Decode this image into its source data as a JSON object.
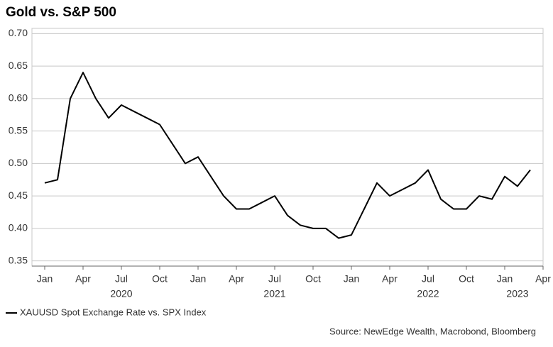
{
  "chart_data": {
    "type": "line",
    "title": "Gold vs. S&P 500",
    "source": "Source: NewEdge Wealth, Macrobond, Bloomberg",
    "x": [
      "2020-01",
      "2020-02",
      "2020-03",
      "2020-04",
      "2020-05",
      "2020-06",
      "2020-07",
      "2020-08",
      "2020-09",
      "2020-10",
      "2020-11",
      "2020-12",
      "2021-01",
      "2021-02",
      "2021-03",
      "2021-04",
      "2021-05",
      "2021-06",
      "2021-07",
      "2021-08",
      "2021-09",
      "2021-10",
      "2021-11",
      "2021-12",
      "2022-01",
      "2022-02",
      "2022-03",
      "2022-04",
      "2022-05",
      "2022-06",
      "2022-07",
      "2022-08",
      "2022-09",
      "2022-10",
      "2022-11",
      "2022-12",
      "2023-01",
      "2023-02",
      "2023-03"
    ],
    "series": [
      {
        "name": "XAUUSD Spot Exchange Rate vs. SPX Index",
        "color": "#000000",
        "values": [
          0.47,
          0.475,
          0.6,
          0.64,
          0.6,
          0.57,
          0.59,
          0.58,
          0.57,
          0.56,
          0.53,
          0.5,
          0.51,
          0.48,
          0.45,
          0.43,
          0.43,
          0.44,
          0.45,
          0.42,
          0.405,
          0.4,
          0.4,
          0.385,
          0.39,
          0.43,
          0.47,
          0.45,
          0.46,
          0.47,
          0.49,
          0.445,
          0.43,
          0.43,
          0.45,
          0.445,
          0.48,
          0.465,
          0.49
        ]
      }
    ],
    "xlim": [
      "2019-12",
      "2023-04"
    ],
    "xticks": [
      {
        "value": "2020-01",
        "label": "Jan"
      },
      {
        "value": "2020-04",
        "label": "Apr"
      },
      {
        "value": "2020-07",
        "label": "Jul"
      },
      {
        "value": "2020-10",
        "label": "Oct"
      },
      {
        "value": "2021-01",
        "label": "Jan"
      },
      {
        "value": "2021-04",
        "label": "Apr"
      },
      {
        "value": "2021-07",
        "label": "Jul"
      },
      {
        "value": "2021-10",
        "label": "Oct"
      },
      {
        "value": "2022-01",
        "label": "Jan"
      },
      {
        "value": "2022-04",
        "label": "Apr"
      },
      {
        "value": "2022-07",
        "label": "Jul"
      },
      {
        "value": "2022-10",
        "label": "Oct"
      },
      {
        "value": "2023-01",
        "label": "Jan"
      },
      {
        "value": "2023-04",
        "label": "Apr"
      }
    ],
    "year_labels": [
      {
        "value": "2020-07",
        "label": "2020"
      },
      {
        "value": "2021-07",
        "label": "2021"
      },
      {
        "value": "2022-07",
        "label": "2022"
      },
      {
        "value": "2023-02",
        "label": "2023"
      }
    ],
    "ylim": [
      0.342,
      0.708
    ],
    "yticks": [
      0.35,
      {
        "value": 0.4,
        "label": "0.40"
      },
      0.45,
      {
        "value": 0.5,
        "label": "0.50"
      },
      0.55,
      {
        "value": 0.6,
        "label": "0.60"
      },
      0.65,
      {
        "value": 0.7,
        "label": "0.70"
      }
    ],
    "grid": true
  }
}
